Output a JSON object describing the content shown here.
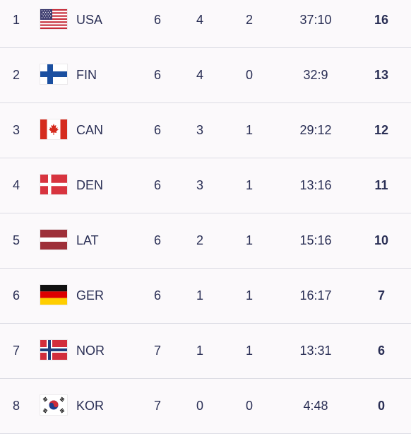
{
  "standings": [
    {
      "rank": "1",
      "country": "USA",
      "flag": "usa-flag-icon",
      "gp": "6",
      "w": "4",
      "l": "2",
      "goals": "37:10",
      "pts": "16"
    },
    {
      "rank": "2",
      "country": "FIN",
      "flag": "finland-flag-icon",
      "gp": "6",
      "w": "4",
      "l": "0",
      "goals": "32:9",
      "pts": "13"
    },
    {
      "rank": "3",
      "country": "CAN",
      "flag": "canada-flag-icon",
      "gp": "6",
      "w": "3",
      "l": "1",
      "goals": "29:12",
      "pts": "12"
    },
    {
      "rank": "4",
      "country": "DEN",
      "flag": "denmark-flag-icon",
      "gp": "6",
      "w": "3",
      "l": "1",
      "goals": "13:16",
      "pts": "11"
    },
    {
      "rank": "5",
      "country": "LAT",
      "flag": "latvia-flag-icon",
      "gp": "6",
      "w": "2",
      "l": "1",
      "goals": "15:16",
      "pts": "10"
    },
    {
      "rank": "6",
      "country": "GER",
      "flag": "germany-flag-icon",
      "gp": "6",
      "w": "1",
      "l": "1",
      "goals": "16:17",
      "pts": "7"
    },
    {
      "rank": "7",
      "country": "NOR",
      "flag": "norway-flag-icon",
      "gp": "7",
      "w": "1",
      "l": "1",
      "goals": "13:31",
      "pts": "6"
    },
    {
      "rank": "8",
      "country": "KOR",
      "flag": "korea-flag-icon",
      "gp": "7",
      "w": "0",
      "l": "0",
      "goals": "4:48",
      "pts": "0"
    }
  ],
  "colors": {
    "text": "#2a2f55",
    "background": "#fbf9fb",
    "divider": "#dcdce4"
  }
}
